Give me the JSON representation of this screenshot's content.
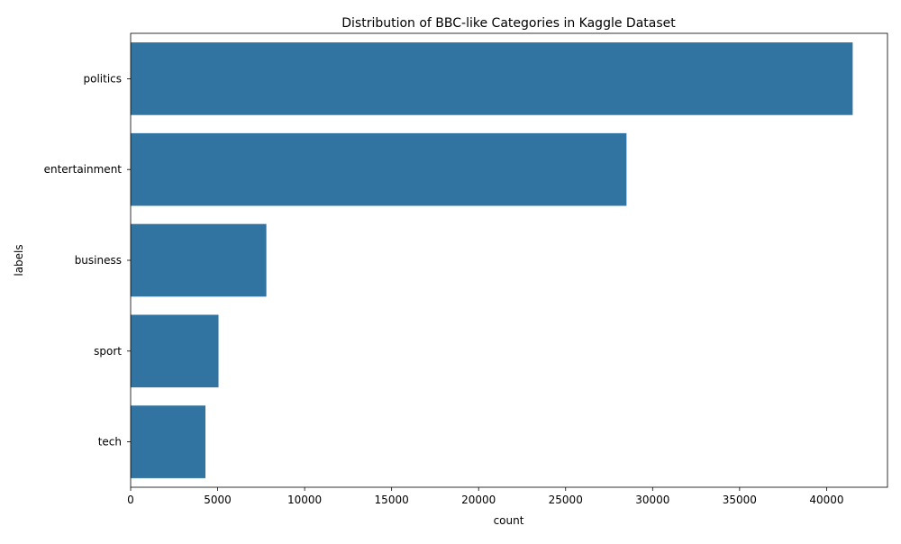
{
  "chart_data": {
    "type": "bar",
    "orientation": "horizontal",
    "title": "Distribution of BBC-like Categories in Kaggle Dataset",
    "xlabel": "count",
    "ylabel": "labels",
    "categories": [
      "politics",
      "entertainment",
      "business",
      "sport",
      "tech"
    ],
    "values": [
      41500,
      28500,
      7800,
      5050,
      4300
    ],
    "xlim": [
      0,
      43500
    ],
    "xticks": [
      0,
      5000,
      10000,
      15000,
      20000,
      25000,
      30000,
      35000,
      40000
    ],
    "bar_color": "#3274a1",
    "grid": false,
    "legend": "none"
  }
}
